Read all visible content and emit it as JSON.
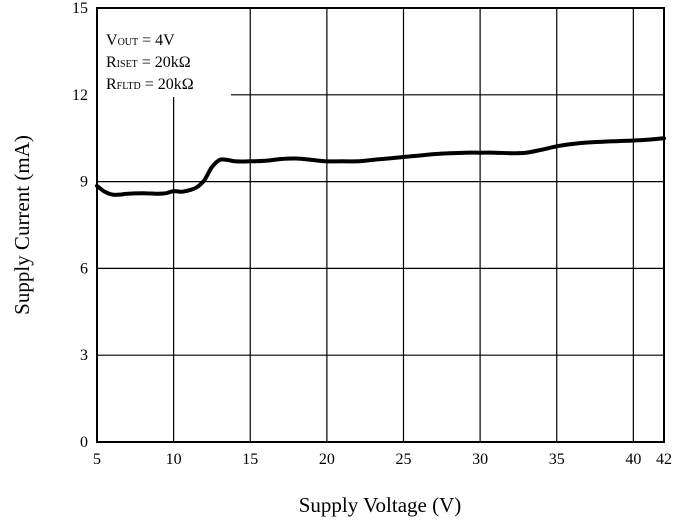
{
  "chart_data": {
    "type": "line",
    "title": "",
    "xlabel": "Supply Voltage (V)",
    "ylabel": "Supply Current (mA)",
    "xlim": [
      5,
      42
    ],
    "ylim": [
      0,
      15
    ],
    "x_ticks": [
      5,
      10,
      15,
      20,
      25,
      30,
      35,
      40,
      42
    ],
    "x_tick_labels": [
      "5",
      "10",
      "15",
      "20",
      "25",
      "30",
      "35",
      "40",
      "42"
    ],
    "y_ticks": [
      0,
      3,
      6,
      9,
      12,
      15
    ],
    "y_tick_labels": [
      "0",
      "3",
      "6",
      "9",
      "12",
      "15"
    ],
    "grid": true,
    "annotations": [
      {
        "main": "V",
        "sub": "OUT",
        "rest": " = 4V"
      },
      {
        "main": "R",
        "sub": "ISET",
        "rest": " = 20kΩ"
      },
      {
        "main": "R",
        "sub": "FLTD",
        "rest": " = 20kΩ"
      }
    ],
    "series": [
      {
        "x": [
          5,
          5.5,
          6,
          6.5,
          7,
          8,
          9,
          9.5,
          10,
          10.5,
          11,
          11.5,
          12,
          12.5,
          13,
          13.5,
          14,
          15,
          16,
          17,
          18,
          19,
          20,
          21,
          22,
          23,
          24,
          25,
          26,
          27,
          28,
          29,
          30,
          31,
          32,
          33,
          34,
          35,
          36,
          37,
          38,
          39,
          40,
          41,
          42
        ],
        "y": [
          8.85,
          8.65,
          8.55,
          8.55,
          8.58,
          8.6,
          8.58,
          8.6,
          8.67,
          8.65,
          8.7,
          8.8,
          9.05,
          9.5,
          9.75,
          9.75,
          9.7,
          9.7,
          9.72,
          9.78,
          9.8,
          9.75,
          9.7,
          9.7,
          9.7,
          9.75,
          9.8,
          9.85,
          9.9,
          9.95,
          9.98,
          10.0,
          10.0,
          10.0,
          9.98,
          10.0,
          10.1,
          10.22,
          10.3,
          10.35,
          10.38,
          10.4,
          10.42,
          10.45,
          10.5
        ]
      }
    ]
  }
}
